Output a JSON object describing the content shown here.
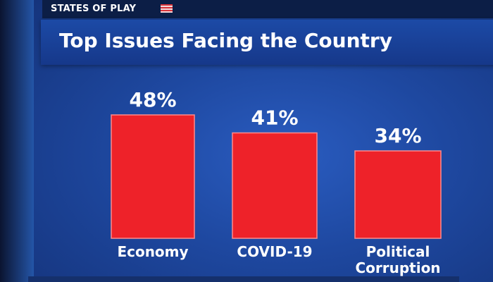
{
  "header": {
    "brand": "STATES OF PLAY",
    "flag_icon": "us-flag-icon"
  },
  "chart_data": {
    "type": "bar",
    "title": "Top Issues Facing the Country",
    "categories": [
      "Economy",
      "COVID-19",
      "Political\nCorruption"
    ],
    "values": [
      48,
      41,
      34
    ],
    "value_labels": [
      "48%",
      "41%",
      "34%"
    ],
    "ylim": [
      0,
      48
    ],
    "grid": false,
    "legend": "none",
    "bar_color": "#ee2229",
    "bar_edge_color": "#ff8a8a"
  },
  "colors": {
    "background": "#1e48a0",
    "title_bar": "#16388a",
    "text": "#ffffff"
  }
}
